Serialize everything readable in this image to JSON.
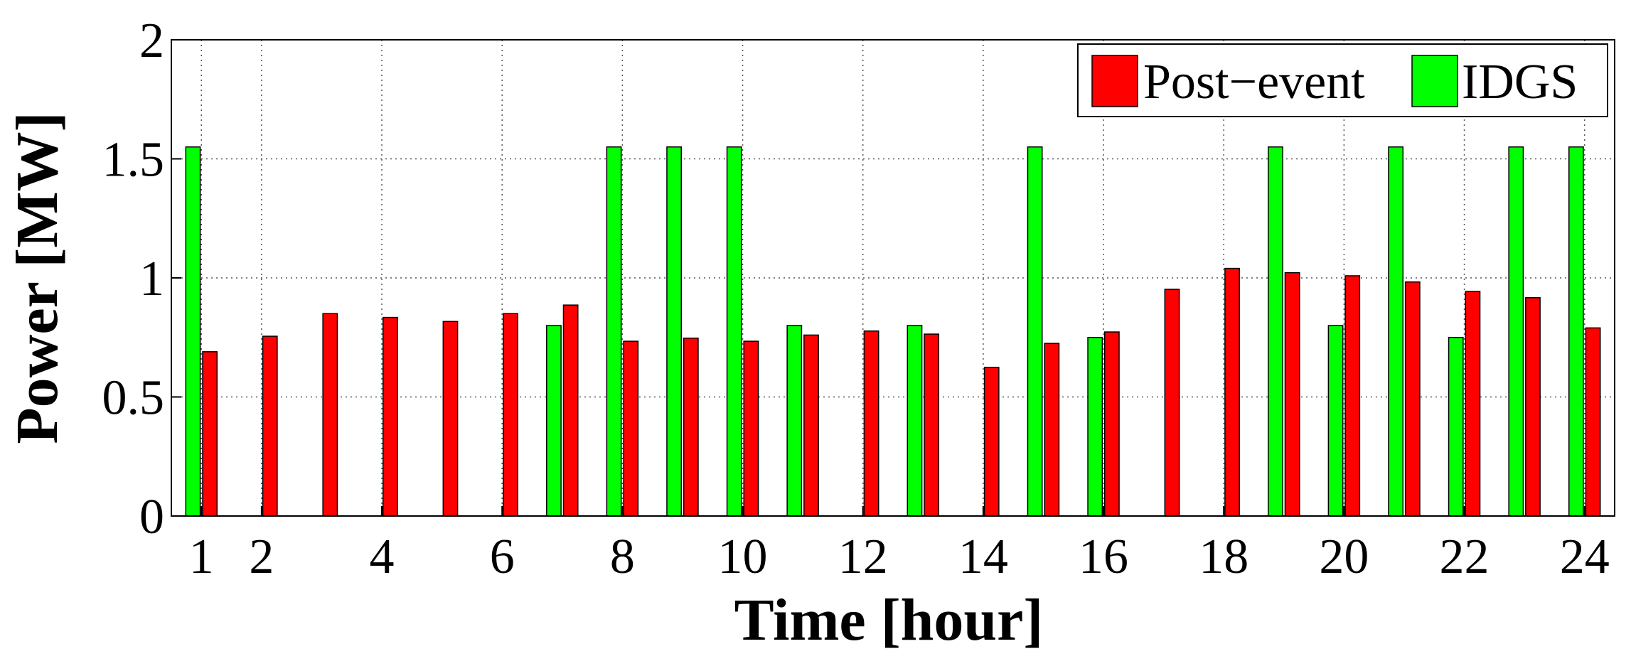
{
  "chart_data": {
    "type": "grouped-bar",
    "xlabel": "Time [hour]",
    "ylabel": "Power [MW]",
    "x": [
      1,
      2,
      3,
      4,
      5,
      6,
      7,
      8,
      9,
      10,
      11,
      12,
      13,
      14,
      15,
      16,
      17,
      18,
      19,
      20,
      21,
      22,
      23,
      24
    ],
    "series": [
      {
        "name": "Post−event",
        "color": "#ff0000",
        "values": [
          0.69,
          0.755,
          0.85,
          0.834,
          0.817,
          0.85,
          0.886,
          0.734,
          0.747,
          0.734,
          0.76,
          0.777,
          0.764,
          0.624,
          0.725,
          0.773,
          0.952,
          1.04,
          1.022,
          1.009,
          0.983,
          0.943,
          0.917,
          0.79
        ]
      },
      {
        "name": "IDGS",
        "color": "#00ff00",
        "values": [
          1.55,
          0,
          0,
          0,
          0,
          0,
          0.8,
          1.55,
          1.55,
          1.55,
          0.8,
          0,
          0.8,
          0,
          1.55,
          0.75,
          0,
          0,
          1.55,
          0.8,
          1.55,
          0.75,
          1.55,
          1.55
        ]
      }
    ],
    "xlim": [
      0.5,
      24.5
    ],
    "xticks": [
      1,
      2,
      4,
      6,
      8,
      10,
      12,
      14,
      16,
      18,
      20,
      22,
      24
    ],
    "ylim": [
      0,
      2
    ],
    "yticks": [
      0,
      0.5,
      1,
      1.5,
      2
    ],
    "grid": true,
    "legend": "upper-right"
  }
}
